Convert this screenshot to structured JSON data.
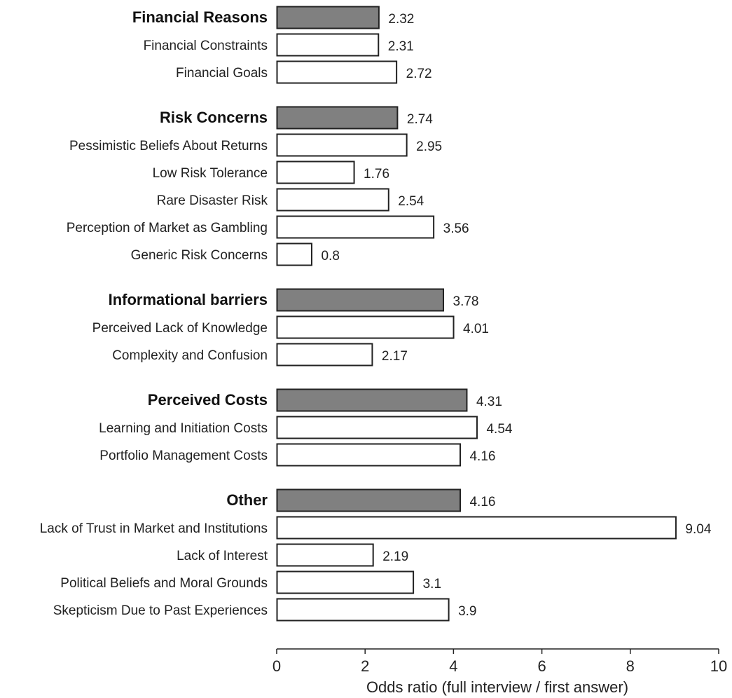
{
  "chart_data": {
    "type": "bar",
    "orientation": "horizontal",
    "xlabel": "Odds ratio (full interview / first answer)",
    "xlim": [
      0,
      10
    ],
    "xticks": [
      0,
      2,
      4,
      6,
      8,
      10
    ],
    "grid": false,
    "colors": {
      "group": "#808080",
      "item": "#ffffff",
      "stroke": "#222222"
    },
    "groups": [
      {
        "label": "Financial Reasons",
        "value": 2.32,
        "items": [
          {
            "label": "Financial Constraints",
            "value": 2.31
          },
          {
            "label": "Financial Goals",
            "value": 2.72
          }
        ]
      },
      {
        "label": "Risk Concerns",
        "value": 2.74,
        "items": [
          {
            "label": "Pessimistic Beliefs About Returns",
            "value": 2.95
          },
          {
            "label": "Low Risk Tolerance",
            "value": 1.76
          },
          {
            "label": "Rare Disaster Risk",
            "value": 2.54
          },
          {
            "label": "Perception of Market as Gambling",
            "value": 3.56
          },
          {
            "label": "Generic Risk Concerns",
            "value": 0.8
          }
        ]
      },
      {
        "label": "Informational barriers",
        "value": 3.78,
        "items": [
          {
            "label": "Perceived Lack of Knowledge",
            "value": 4.01
          },
          {
            "label": "Complexity and Confusion",
            "value": 2.17
          }
        ]
      },
      {
        "label": "Perceived Costs",
        "value": 4.31,
        "items": [
          {
            "label": "Learning and Initiation Costs",
            "value": 4.54
          },
          {
            "label": "Portfolio Management Costs",
            "value": 4.16
          }
        ]
      },
      {
        "label": "Other",
        "value": 4.16,
        "items": [
          {
            "label": "Lack of Trust in Market and Institutions",
            "value": 9.04
          },
          {
            "label": "Lack of Interest",
            "value": 2.19
          },
          {
            "label": "Political Beliefs and Moral Grounds",
            "value": 3.1
          },
          {
            "label": "Skepticism Due to Past Experiences",
            "value": 3.9
          }
        ]
      }
    ]
  }
}
